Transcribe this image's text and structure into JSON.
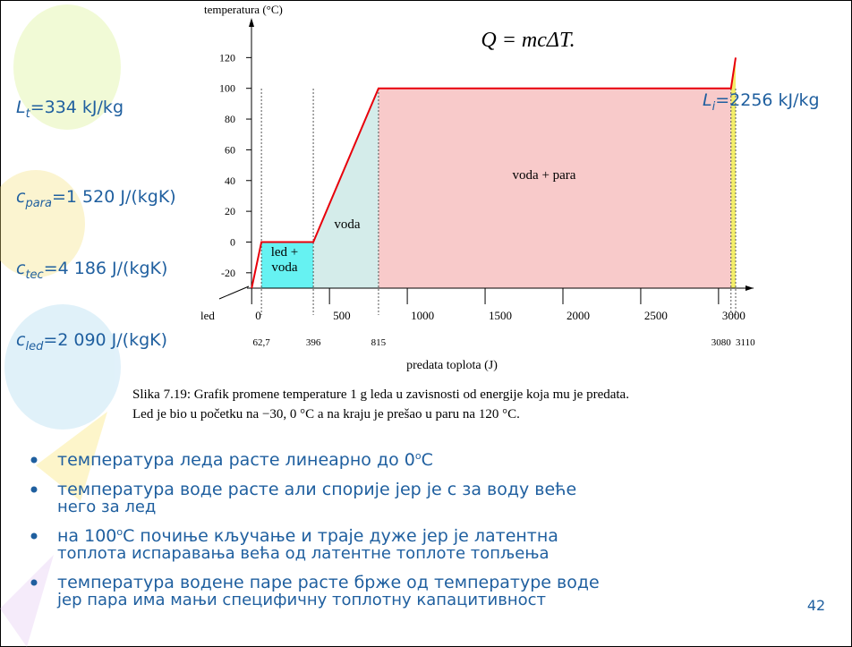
{
  "chart_data": {
    "type": "line",
    "equation": "Q = mcΔT.",
    "xlabel": "predata toplota (J)",
    "ylabel": "temperatura (°C)",
    "start_label": "led",
    "x": [
      0,
      62.7,
      396,
      815,
      3080,
      3110
    ],
    "series": [
      {
        "color": "#e8000b",
        "values": [
          -30,
          0,
          0,
          100,
          100,
          120
        ]
      }
    ],
    "xlim": [
      -30,
      3225
    ],
    "ylim": [
      -30,
      140
    ],
    "xticks": [
      0,
      500,
      1000,
      1500,
      2000,
      2500,
      3000
    ],
    "yticks": [
      -20,
      0,
      20,
      40,
      60,
      80,
      100,
      120
    ],
    "point_labels": [
      {
        "value": 62.7,
        "label": "62,7"
      },
      396,
      815,
      3080,
      3110
    ],
    "regions": [
      {
        "label": [
          "led +",
          "voda"
        ],
        "color": "#66f2f2"
      },
      {
        "label": [
          "voda"
        ],
        "color": "#d4ecea"
      },
      {
        "label": [
          "voda + para"
        ],
        "color": "#f8caca"
      },
      {
        "color": "#f3ee6a"
      }
    ],
    "grid": false
  },
  "constants": [
    {
      "symbol": "L",
      "sub": "t",
      "text": "=334 kJ/kg"
    },
    {
      "symbol": "c",
      "sub": "para",
      "text": "=1 520 J/(kgK)"
    },
    {
      "symbol": "c",
      "sub": "tec",
      "text": "=4 186 J/(kgK)"
    },
    {
      "symbol": "c",
      "sub": "led",
      "text": "=2 090 J/(kgK)"
    },
    {
      "symbol": "L",
      "sub": "i",
      "text": "=2256 kJ/kg"
    }
  ],
  "caption": [
    "Slika 7.19: Grafik promene temperature 1 g leda u zavisnosti od energije koja mu je predata.",
    "Led je bio u početku na −30, 0 °C a na kraju je prešao u paru na 120 °C."
  ],
  "bullets": [
    {
      "lines": [
        [
          "температура леда расте линеарно до 0",
          "o",
          "C"
        ]
      ]
    },
    {
      "lines": [
        [
          "температура воде расте али спорије  јер је с за воду веће"
        ],
        [
          "него за лед"
        ]
      ]
    },
    {
      "lines": [
        [
          "на 100",
          "o",
          "C почиње кључање и траје дуже јер је латентна"
        ],
        [
          "топлота испаравања већа од латентне топлоте топљења"
        ]
      ]
    },
    {
      "lines": [
        [
          "температура водене паре расте брже од температуре воде"
        ],
        [
          "јер пара има мањи специфичну топлотну капацитивност"
        ]
      ]
    }
  ],
  "page_number": "42"
}
